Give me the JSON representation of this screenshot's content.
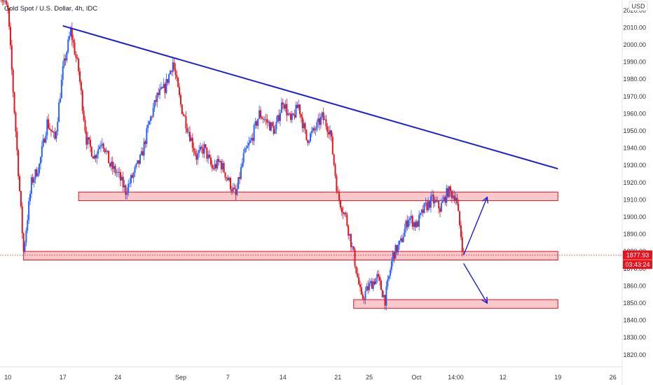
{
  "header": {
    "title": "Gold Spot / U.S. Dollar, 4h, IDC"
  },
  "currency_label": "USD",
  "colors": {
    "up": "#2962ff",
    "down": "#e5131d",
    "trendline": "#1d1fd1",
    "zone_fill": "#f8c8cb",
    "zone_border": "#e5131d",
    "badge": "#e5131d"
  },
  "chart_data": {
    "type": "candlestick",
    "title": "Gold Spot / U.S. Dollar, 4h, IDC",
    "ylim": [
      1813,
      2026
    ],
    "xlim": [
      "2023-08-09",
      "2023-10-27"
    ],
    "x_ticks": [
      {
        "date": "2023-08-10",
        "label": "10"
      },
      {
        "date": "2023-08-17",
        "label": "17"
      },
      {
        "date": "2023-08-24",
        "label": "24"
      },
      {
        "date": "2023-09-01",
        "label": "Sep"
      },
      {
        "date": "2023-09-07",
        "label": "7"
      },
      {
        "date": "2023-09-14",
        "label": "14"
      },
      {
        "date": "2023-09-21",
        "label": "21"
      },
      {
        "date": "2023-09-25",
        "label": "25"
      },
      {
        "date": "2023-10-01",
        "label": "Oct"
      },
      {
        "date": "2023-10-06",
        "label": "14:00"
      },
      {
        "date": "2023-10-12",
        "label": "12"
      },
      {
        "date": "2023-10-19",
        "label": "19"
      },
      {
        "date": "2023-10-26",
        "label": "26"
      }
    ],
    "y_ticks": [
      1820,
      1830,
      1840,
      1850,
      1860,
      1870,
      1880,
      1890,
      1900,
      1910,
      1920,
      1930,
      1940,
      1950,
      1960,
      1970,
      1980,
      1990,
      2000,
      2010,
      2020
    ],
    "price_path": [
      [
        "2023-08-09",
        2030
      ],
      [
        "2023-08-10",
        2020
      ],
      [
        "2023-08-11",
        1950
      ],
      [
        "2023-08-12",
        1880
      ],
      [
        "2023-08-13",
        1920
      ],
      [
        "2023-08-14",
        1930
      ],
      [
        "2023-08-15",
        1955
      ],
      [
        "2023-08-16",
        1945
      ],
      [
        "2023-08-17",
        1985
      ],
      [
        "2023-08-18",
        2008
      ],
      [
        "2023-08-19",
        1985
      ],
      [
        "2023-08-20",
        1945
      ],
      [
        "2023-08-21",
        1935
      ],
      [
        "2023-08-22",
        1945
      ],
      [
        "2023-08-23",
        1930
      ],
      [
        "2023-08-24",
        1925
      ],
      [
        "2023-08-25",
        1915
      ],
      [
        "2023-08-27",
        1935
      ],
      [
        "2023-08-28",
        1955
      ],
      [
        "2023-08-29",
        1970
      ],
      [
        "2023-08-30",
        1975
      ],
      [
        "2023-08-31",
        1990
      ],
      [
        "2023-09-01",
        1965
      ],
      [
        "2023-09-02",
        1950
      ],
      [
        "2023-09-03",
        1935
      ],
      [
        "2023-09-04",
        1940
      ],
      [
        "2023-09-05",
        1928
      ],
      [
        "2023-09-06",
        1932
      ],
      [
        "2023-09-07",
        1922
      ],
      [
        "2023-09-08",
        1912
      ],
      [
        "2023-09-09",
        1935
      ],
      [
        "2023-09-10",
        1945
      ],
      [
        "2023-09-11",
        1960
      ],
      [
        "2023-09-12",
        1955
      ],
      [
        "2023-09-13",
        1950
      ],
      [
        "2023-09-14",
        1968
      ],
      [
        "2023-09-15",
        1955
      ],
      [
        "2023-09-16",
        1965
      ],
      [
        "2023-09-17",
        1945
      ],
      [
        "2023-09-18",
        1950
      ],
      [
        "2023-09-19",
        1958
      ],
      [
        "2023-09-20",
        1950
      ],
      [
        "2023-09-21",
        1912
      ],
      [
        "2023-09-22",
        1900
      ],
      [
        "2023-09-23",
        1878
      ],
      [
        "2023-09-24",
        1852
      ],
      [
        "2023-09-25",
        1860
      ],
      [
        "2023-09-26",
        1865
      ],
      [
        "2023-09-27",
        1852
      ],
      [
        "2023-09-28",
        1878
      ],
      [
        "2023-09-29",
        1885
      ],
      [
        "2023-09-30",
        1900
      ],
      [
        "2023-10-01",
        1895
      ],
      [
        "2023-10-02",
        1905
      ],
      [
        "2023-10-03",
        1910
      ],
      [
        "2023-10-04",
        1905
      ],
      [
        "2023-10-05",
        1915
      ],
      [
        "2023-10-06",
        1912
      ],
      [
        "2023-10-07",
        1878
      ]
    ],
    "trendline": {
      "from": [
        "2023-08-17",
        2011
      ],
      "to": [
        "2023-10-19",
        1928
      ]
    },
    "zones": [
      {
        "name": "resistance",
        "from": "2023-08-19",
        "to": "2023-10-19",
        "ymin": 1909.5,
        "ymax": 1914.5
      },
      {
        "name": "support",
        "from": "2023-08-12",
        "to": "2023-10-19",
        "ymin": 1875,
        "ymax": 1880
      },
      {
        "name": "lower-support",
        "from": "2023-09-23",
        "to": "2023-10-19",
        "ymin": 1847,
        "ymax": 1852
      }
    ],
    "arrows": [
      {
        "name": "up-arrow",
        "from": [
          "2023-10-07",
          1877.93
        ],
        "to": [
          "2023-10-10",
          1911.5
        ]
      },
      {
        "name": "down-arrow",
        "from": [
          "2023-10-07",
          1873
        ],
        "to": [
          "2023-10-10",
          1850
        ]
      }
    ],
    "current_price": {
      "value": 1877.93,
      "label": "1877.93",
      "countdown": "03:43:24"
    }
  }
}
